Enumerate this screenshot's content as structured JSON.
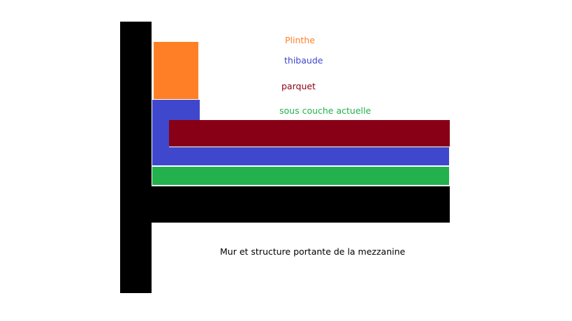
{
  "labels": {
    "plinthe": "Plinthe",
    "thibaude": "thibaude",
    "parquet": "parquet",
    "sous_couche": "sous couche actuelle",
    "structure": "Mur et structure portante de la mezzanine"
  },
  "colors": {
    "plinthe": "#ff7f27",
    "thibaude": "#3f48cc",
    "parquet": "#880015",
    "sous_couche": "#22b14c",
    "structure": "#000000",
    "structure_label": "#000000"
  }
}
